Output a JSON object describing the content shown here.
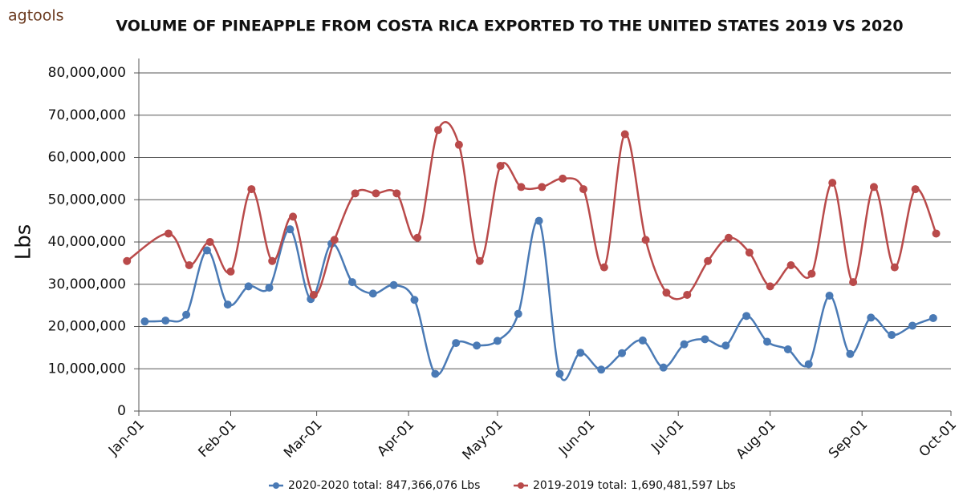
{
  "logo": "agtools",
  "chart_data": {
    "type": "line",
    "title": "VOLUME OF PINEAPPLE FROM COSTA RICA EXPORTED TO THE UNITED STATES 2019 VS 2020",
    "ylabel": "Lbs",
    "xlim": [
      0,
      274
    ],
    "xticks": [
      {
        "value": 0,
        "label": "Jan-01"
      },
      {
        "value": 31,
        "label": "Feb-01"
      },
      {
        "value": 60,
        "label": "Mar-01"
      },
      {
        "value": 91,
        "label": "Apr-01"
      },
      {
        "value": 121,
        "label": "May-01"
      },
      {
        "value": 152,
        "label": "Jun-01"
      },
      {
        "value": 182,
        "label": "Jul-01"
      },
      {
        "value": 213,
        "label": "Aug-01"
      },
      {
        "value": 244,
        "label": "Sep-01"
      },
      {
        "value": 274,
        "label": "Oct-01"
      }
    ],
    "ylim": [
      0,
      80000000
    ],
    "yticks": [
      0,
      {
        "value": 10000000,
        "label": "10,000,000"
      },
      {
        "value": 20000000,
        "label": "20,000,000"
      },
      {
        "value": 30000000,
        "label": "30,000,000"
      },
      {
        "value": 40000000,
        "label": "40,000,000"
      },
      {
        "value": 50000000,
        "label": "50,000,000"
      },
      {
        "value": 60000000,
        "label": "60,000,000"
      },
      {
        "value": 70000000,
        "label": "70,000,000"
      },
      {
        "value": 80000000,
        "label": "80,000,000"
      }
    ],
    "grid": true,
    "legend": "bottom",
    "series": [
      {
        "name": "2020-2020 total: 847,366,076 Lbs",
        "color": "#4a7ab5",
        "x": [
          2,
          9,
          16,
          23,
          30,
          37,
          44,
          51,
          58,
          65,
          72,
          79,
          86,
          93,
          100,
          107,
          114,
          121,
          128,
          135,
          142,
          149,
          156,
          163,
          170,
          177,
          184,
          191,
          198,
          205,
          212,
          219,
          226,
          233,
          240,
          247,
          254,
          261,
          268
        ],
        "values": [
          21200000,
          21400000,
          22800000,
          38000000,
          25200000,
          29500000,
          29200000,
          43000000,
          26500000,
          39600000,
          30500000,
          27800000,
          29800000,
          26300000,
          8800000,
          16100000,
          15500000,
          16600000,
          23000000,
          45000000,
          8800000,
          13800000,
          9800000,
          13700000,
          16700000,
          10300000,
          15800000,
          17000000,
          15500000,
          22500000,
          16400000,
          14600000,
          11100000,
          27300000,
          13500000,
          22100000,
          18000000,
          20200000,
          22000000
        ]
      },
      {
        "name": "2019-2019 total: 1,690,481,597 Lbs",
        "color": "#b94a4a",
        "x": [
          -4,
          10,
          17,
          24,
          31,
          38,
          45,
          52,
          59,
          66,
          73,
          80,
          87,
          94,
          101,
          108,
          115,
          122,
          129,
          136,
          143,
          150,
          157,
          164,
          171,
          178,
          185,
          192,
          199,
          206,
          213,
          220,
          227,
          234,
          241,
          248,
          255,
          262,
          269
        ],
        "values": [
          35500000,
          42000000,
          34500000,
          40000000,
          33000000,
          52500000,
          35500000,
          46000000,
          27500000,
          40500000,
          51500000,
          51500000,
          51500000,
          41000000,
          66500000,
          63000000,
          35500000,
          58000000,
          53000000,
          53000000,
          55000000,
          52500000,
          34000000,
          65500000,
          40500000,
          28000000,
          27500000,
          35500000,
          41000000,
          37500000,
          29500000,
          34500000,
          32500000,
          54000000,
          30500000,
          53000000,
          34000000,
          52500000,
          42000000
        ]
      }
    ]
  }
}
